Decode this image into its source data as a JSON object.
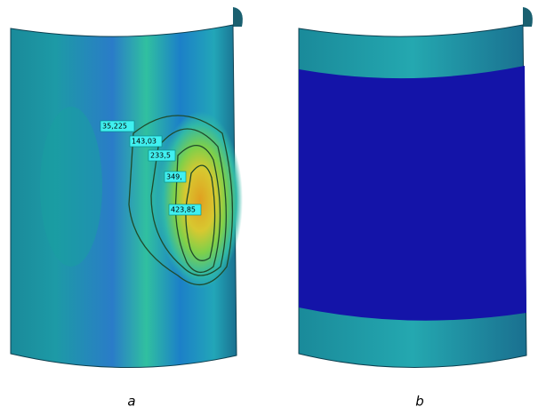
{
  "panel_a": {
    "contour_labels": [
      "35,225",
      "143,03",
      "233,5",
      "349,",
      "423,85"
    ],
    "caption": "a"
  },
  "panel_b": {
    "caption": "b"
  }
}
